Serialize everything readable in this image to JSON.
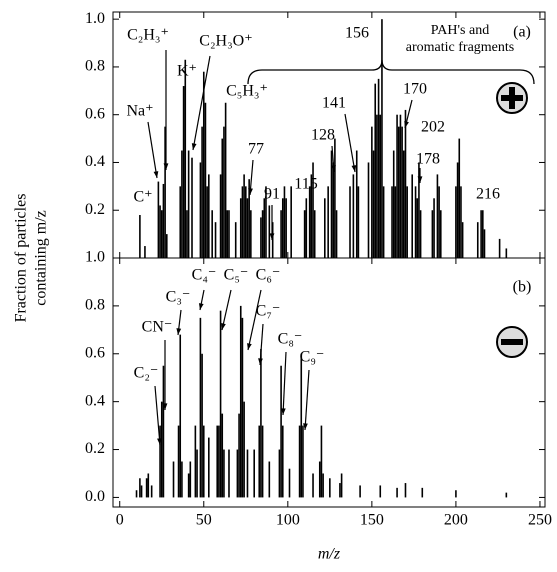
{
  "chart_data": [
    {
      "type": "bar",
      "panel_label": "(a)",
      "ylabel": [
        "Fraction of particles",
        "containing m/z"
      ],
      "x": [
        12,
        15,
        23,
        24,
        25,
        26,
        27,
        28,
        36,
        37,
        38,
        39,
        40,
        41,
        43,
        48,
        49,
        50,
        51,
        52,
        53,
        55,
        57,
        60,
        61,
        62,
        63,
        64,
        65,
        69,
        72,
        73,
        74,
        75,
        76,
        77,
        78,
        84,
        85,
        86,
        87,
        89,
        91,
        96,
        97,
        98,
        99,
        102,
        110,
        111,
        113,
        114,
        115,
        116,
        122,
        124,
        126,
        127,
        128,
        129,
        137,
        139,
        141,
        142,
        148,
        150,
        151,
        152,
        153,
        154,
        155,
        156,
        157,
        162,
        163,
        164,
        165,
        166,
        167,
        168,
        169,
        170,
        171,
        174,
        176,
        177,
        178,
        179,
        186,
        187,
        189,
        190,
        191,
        200,
        201,
        202,
        203,
        204,
        213,
        215,
        216,
        217,
        226,
        230
      ],
      "values": [
        0.18,
        0.05,
        0.32,
        0.22,
        0.2,
        0.31,
        0.55,
        0.1,
        0.3,
        0.45,
        0.72,
        0.83,
        0.2,
        0.45,
        0.42,
        0.4,
        0.55,
        0.78,
        0.65,
        0.3,
        0.35,
        0.2,
        0.15,
        0.35,
        0.5,
        0.55,
        0.65,
        0.2,
        0.2,
        0.15,
        0.25,
        0.3,
        0.35,
        0.3,
        0.25,
        0.33,
        0.2,
        0.17,
        0.2,
        0.25,
        0.3,
        0.22,
        0.15,
        0.2,
        0.25,
        0.3,
        0.25,
        0.3,
        0.2,
        0.25,
        0.3,
        0.35,
        0.4,
        0.2,
        0.25,
        0.3,
        0.45,
        0.4,
        0.5,
        0.2,
        0.3,
        0.35,
        0.45,
        0.3,
        0.4,
        0.55,
        0.45,
        0.73,
        0.6,
        0.75,
        0.6,
        1.0,
        0.3,
        0.3,
        0.45,
        0.3,
        0.6,
        0.55,
        0.6,
        0.55,
        0.45,
        0.62,
        0.3,
        0.35,
        0.3,
        0.25,
        0.4,
        0.2,
        0.2,
        0.25,
        0.35,
        0.3,
        0.2,
        0.3,
        0.4,
        0.5,
        0.3,
        0.15,
        0.15,
        0.2,
        0.2,
        0.12,
        0.08,
        0.04
      ],
      "color": "#000000",
      "xlim": [
        -4,
        253
      ],
      "ylim": [
        0,
        1.03
      ],
      "yticks": [
        0.2,
        0.4,
        0.6,
        0.8,
        {
          "value": 1,
          "label": "1.0"
        }
      ],
      "annotations": [
        "C₂H₃⁺",
        "K⁺",
        "C₂H₃O⁺",
        "C₅H₃⁺",
        "Na⁺",
        "C⁺",
        "77",
        "91",
        "115",
        "128",
        "141",
        "156",
        "170",
        "178",
        "202",
        "216"
      ],
      "bracket_label": [
        "PAH's and",
        "aromatic fragments"
      ]
    },
    {
      "type": "bar",
      "panel_label": "(b)",
      "xlabel": "m/z",
      "x": [
        10,
        12,
        13,
        16,
        17,
        19,
        24,
        25,
        26,
        32,
        35,
        36,
        37,
        41,
        42,
        45,
        46,
        48,
        49,
        50,
        53,
        58,
        59,
        60,
        61,
        62,
        65,
        70,
        71,
        72,
        73,
        74,
        76,
        80,
        83,
        84,
        85,
        89,
        95,
        96,
        97,
        101,
        107,
        108,
        109,
        115,
        119,
        120,
        121,
        125,
        131,
        132,
        143,
        155,
        165,
        170,
        180,
        200,
        230
      ],
      "values": [
        0.03,
        0.08,
        0.05,
        0.08,
        0.1,
        0.05,
        0.3,
        0.4,
        0.55,
        0.15,
        0.3,
        0.68,
        0.15,
        0.1,
        0.15,
        0.3,
        0.2,
        0.75,
        0.6,
        0.3,
        0.25,
        0.3,
        0.3,
        0.78,
        0.35,
        0.2,
        0.2,
        0.2,
        0.35,
        0.8,
        0.75,
        0.4,
        0.2,
        0.2,
        0.3,
        0.62,
        0.3,
        0.15,
        0.2,
        0.55,
        0.3,
        0.12,
        0.3,
        0.6,
        0.3,
        0.1,
        0.15,
        0.3,
        0.1,
        0.08,
        0.06,
        0.1,
        0.05,
        0.05,
        0.04,
        0.06,
        0.04,
        0.03,
        0.02
      ],
      "color": "#000000",
      "xlim": [
        -4,
        253
      ],
      "ylim": [
        -0.04,
        1.0
      ],
      "xticks": [
        0,
        50,
        100,
        150,
        200,
        250
      ],
      "yticks": [
        {
          "value": 0,
          "label": "0.0"
        },
        0.2,
        0.4,
        0.6,
        0.8,
        {
          "value": 1,
          "label": "1.0"
        }
      ],
      "annotations": [
        "CN⁻",
        "C₂⁻",
        "C₃⁻",
        "C₄⁻",
        "C₅⁻",
        "C₆⁻",
        "C₇⁻",
        "C₈⁻",
        "C₉⁻"
      ]
    }
  ]
}
